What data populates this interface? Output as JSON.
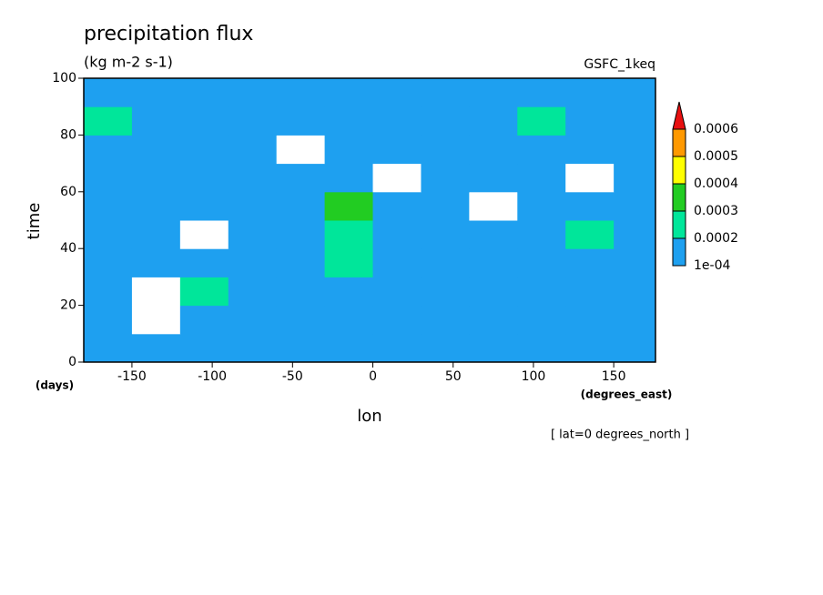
{
  "chart_data": {
    "type": "heatmap",
    "title": "precipitation flux",
    "subtitle": "(kg m-2 s-1)",
    "source": "GSFC_1keq",
    "x_label": "lon",
    "x_unit": "(degrees_east)",
    "y_label": "time",
    "y_unit": "(days)",
    "note": "[ lat=0 degrees_north ]",
    "xlim": [
      -180,
      176
    ],
    "ylim": [
      0,
      100
    ],
    "xticks": [
      -150,
      -100,
      -50,
      0,
      50,
      100,
      150
    ],
    "yticks": [
      0,
      20,
      40,
      60,
      80,
      100
    ],
    "x": [
      -165,
      -135,
      -105,
      -75,
      -45,
      -15,
      15,
      45,
      75,
      105,
      135,
      165
    ],
    "y": [
      5,
      15,
      25,
      35,
      45,
      55,
      65,
      75,
      85,
      95
    ],
    "z": [
      [
        0.00014,
        0.00016,
        0.00013,
        0.00015,
        0.00012,
        0.00017,
        0.00014,
        0.00013,
        0.00016,
        0.00015,
        0.00018,
        0.00014
      ],
      [
        0.00013,
        8e-05,
        0.00015,
        0.00016,
        0.00014,
        0.00015,
        0.00016,
        0.00014,
        0.00012,
        0.00015,
        0.00013,
        0.00016
      ],
      [
        0.00012,
        9e-05,
        0.00021,
        0.00014,
        0.00016,
        0.00018,
        0.00015,
        0.00017,
        0.00014,
        0.00016,
        0.00015,
        0.00013
      ],
      [
        0.00015,
        0.00016,
        0.00014,
        0.00013,
        0.00017,
        0.00022,
        0.00016,
        0.00014,
        0.00015,
        0.00013,
        0.00017,
        0.00015
      ],
      [
        0.00013,
        0.00014,
        9e-05,
        0.00015,
        0.00016,
        0.00024,
        0.00018,
        0.00015,
        0.00014,
        0.00016,
        0.00021,
        0.00014
      ],
      [
        0.00014,
        0.00013,
        0.00015,
        0.00016,
        0.00018,
        0.00031,
        0.00017,
        0.00014,
        9e-05,
        0.00015,
        0.00014,
        0.00016
      ],
      [
        0.00016,
        0.00018,
        0.00014,
        0.00013,
        0.00016,
        0.00015,
        8e-05,
        0.00014,
        0.00016,
        0.00013,
        9e-05,
        0.00015
      ],
      [
        0.00015,
        0.00014,
        0.00016,
        0.00015,
        9e-05,
        0.00014,
        0.00013,
        0.00016,
        0.00015,
        0.00014,
        0.00016,
        0.00013
      ],
      [
        0.00021,
        0.00016,
        0.00015,
        0.00014,
        0.00016,
        0.00013,
        0.00015,
        0.00017,
        0.00014,
        0.00022,
        0.00015,
        0.00016
      ],
      [
        0.00014,
        0.00015,
        0.00013,
        0.00016,
        0.00014,
        0.00015,
        0.00016,
        0.00014,
        0.00015,
        0.00013,
        0.00016,
        0.00014
      ]
    ],
    "colorbar_ticks": [
      {
        "value": 0.0001,
        "label": "1e-04"
      },
      0.0002,
      0.0003,
      0.0004,
      0.0005,
      0.0006
    ],
    "colors": [
      "#1ea0f0",
      "#00e69a",
      "#22cc22",
      "#ffff00",
      "#ff9900",
      "#e81010"
    ]
  }
}
